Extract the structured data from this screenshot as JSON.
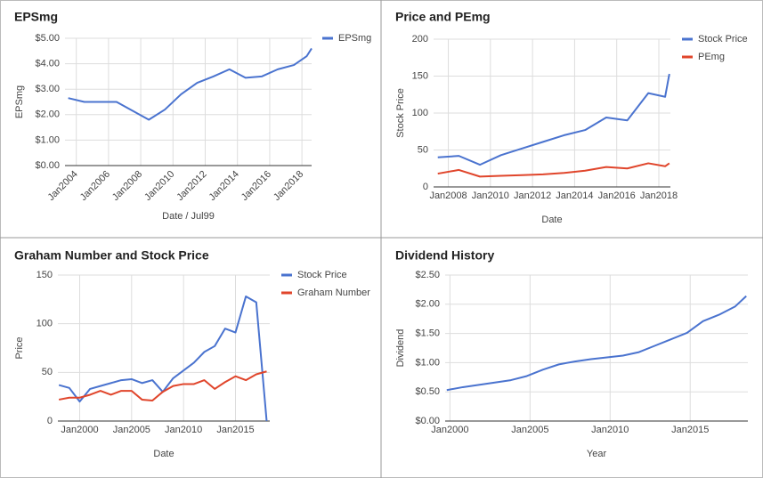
{
  "chart_data": [
    {
      "type": "line",
      "title": "EPSmg",
      "x_label": "Date / Jul99",
      "y_label": "EPSmg",
      "x": [
        2003.5,
        2004.5,
        2005.5,
        2006.5,
        2007.5,
        2008.5,
        2009.5,
        2010.5,
        2011.5,
        2012.5,
        2013.5,
        2014.5,
        2015.5,
        2016.5,
        2017.5,
        2018.3,
        2018.6
      ],
      "series": [
        {
          "name": "EPSmg",
          "color": "#4a73cf",
          "values": [
            2.65,
            2.5,
            2.5,
            2.5,
            2.15,
            1.8,
            2.2,
            2.8,
            3.25,
            3.5,
            3.78,
            3.45,
            3.5,
            3.78,
            3.95,
            4.3,
            4.6
          ]
        }
      ],
      "xlim": [
        2003.3,
        2018.6
      ],
      "xticks": [
        {
          "value": 2004,
          "label": "Jan2004"
        },
        {
          "value": 2006,
          "label": "Jan2006"
        },
        {
          "value": 2008,
          "label": "Jan2008"
        },
        {
          "value": 2010,
          "label": "Jan2010"
        },
        {
          "value": 2012,
          "label": "Jan2012"
        },
        {
          "value": 2014,
          "label": "Jan2014"
        },
        {
          "value": 2016,
          "label": "Jan2016"
        },
        {
          "value": 2018,
          "label": "Jan2018"
        }
      ],
      "ylim": [
        0,
        5
      ],
      "yticks": [
        {
          "value": 0,
          "label": "$0.00"
        },
        {
          "value": 1,
          "label": "$1.00"
        },
        {
          "value": 2,
          "label": "$2.00"
        },
        {
          "value": 3,
          "label": "$3.00"
        },
        {
          "value": 4,
          "label": "$4.00"
        },
        {
          "value": 5,
          "label": "$5.00"
        }
      ],
      "grid": true,
      "legend": "right"
    },
    {
      "type": "line",
      "title": "Price and PEmg",
      "x_label": "Date",
      "y_label": "Stock Price",
      "x": [
        2007.5,
        2008.5,
        2009.5,
        2010.5,
        2011.5,
        2012.5,
        2013.5,
        2014.5,
        2015.5,
        2016.5,
        2017.5,
        2018.3,
        2018.5
      ],
      "series": [
        {
          "name": "Stock Price",
          "color": "#4a73cf",
          "values": [
            40,
            42,
            30,
            43,
            52,
            61,
            70,
            77,
            94,
            90,
            127,
            122,
            153
          ]
        },
        {
          "name": "PEmg",
          "color": "#e0452b",
          "values": [
            18,
            23,
            14,
            15,
            16,
            17,
            19,
            22,
            27,
            25,
            32,
            28,
            32
          ]
        }
      ],
      "xlim": [
        2007.3,
        2018.55
      ],
      "xticks": [
        {
          "value": 2008,
          "label": "Jan2008"
        },
        {
          "value": 2010,
          "label": "Jan2010"
        },
        {
          "value": 2012,
          "label": "Jan2012"
        },
        {
          "value": 2014,
          "label": "Jan2014"
        },
        {
          "value": 2016,
          "label": "Jan2016"
        },
        {
          "value": 2018,
          "label": "Jan2018"
        }
      ],
      "ylim": [
        0,
        200
      ],
      "yticks": [
        0,
        50,
        100,
        150,
        200
      ],
      "grid": true,
      "legend": "right"
    },
    {
      "type": "line",
      "title": "Graham Number and Stock Price",
      "x_label": "Date",
      "y_label": "Price",
      "x": [
        1998,
        1999,
        2000,
        2001,
        2002,
        2003,
        2004,
        2005,
        2006,
        2007,
        2008,
        2009,
        2010,
        2011,
        2012,
        2013,
        2014,
        2015,
        2016,
        2017,
        2018
      ],
      "series": [
        {
          "name": "Stock Price",
          "color": "#4a73cf",
          "values": [
            37,
            34,
            20,
            33,
            36,
            39,
            42,
            43,
            39,
            42,
            30,
            44,
            52,
            60,
            71,
            77,
            95,
            91,
            128,
            122,
            0
          ]
        },
        {
          "name": "Graham Number",
          "color": "#e0452b",
          "values": [
            22,
            24,
            24,
            27,
            31,
            27,
            31,
            31,
            22,
            21,
            30,
            36,
            38,
            38,
            42,
            33,
            40,
            46,
            42,
            48,
            51
          ]
        }
      ],
      "xlim": [
        1997.9,
        2018.3
      ],
      "xticks": [
        {
          "value": 2000,
          "label": "Jan2000"
        },
        {
          "value": 2005,
          "label": "Jan2005"
        },
        {
          "value": 2010,
          "label": "Jan2010"
        },
        {
          "value": 2015,
          "label": "Jan2015"
        }
      ],
      "ylim": [
        0,
        150
      ],
      "yticks": [
        0,
        50,
        100,
        150
      ],
      "grid": true,
      "legend": "right"
    },
    {
      "type": "line",
      "title": "Dividend History",
      "x_label": "Year",
      "y_label": "Dividend",
      "x": [
        1999.8,
        2000.8,
        2001.8,
        2002.8,
        2003.8,
        2004.8,
        2005.8,
        2006.8,
        2007.8,
        2008.8,
        2009.8,
        2010.8,
        2011.8,
        2012.8,
        2013.8,
        2014.8,
        2015.8,
        2016.8,
        2017.8,
        2018.5
      ],
      "values": [
        0.53,
        0.58,
        0.62,
        0.66,
        0.7,
        0.77,
        0.88,
        0.97,
        1.02,
        1.06,
        1.09,
        1.12,
        1.18,
        1.29,
        1.4,
        1.51,
        1.71,
        1.82,
        1.96,
        2.14
      ],
      "color": "#4a73cf",
      "xlim": [
        1999.7,
        2018.6
      ],
      "xticks": [
        {
          "value": 2000,
          "label": "Jan2000"
        },
        {
          "value": 2005,
          "label": "Jan2005"
        },
        {
          "value": 2010,
          "label": "Jan2010"
        },
        {
          "value": 2015,
          "label": "Jan2015"
        }
      ],
      "ylim": [
        0,
        2.5
      ],
      "yticks": [
        {
          "value": 0,
          "label": "$0.00"
        },
        {
          "value": 0.5,
          "label": "$0.50"
        },
        {
          "value": 1,
          "label": "$1.00"
        },
        {
          "value": 1.5,
          "label": "$1.50"
        },
        {
          "value": 2,
          "label": "$2.00"
        },
        {
          "value": 2.5,
          "label": "$2.50"
        }
      ],
      "grid": true
    }
  ]
}
